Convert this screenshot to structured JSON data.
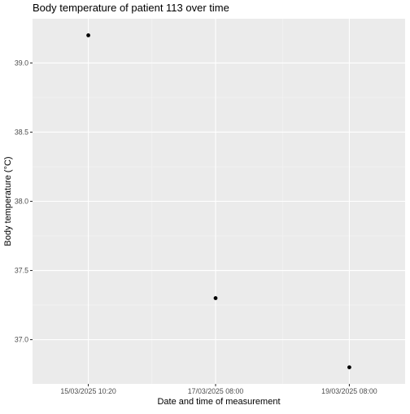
{
  "chart_data": {
    "type": "scatter",
    "title": "Body temperature of patient 113 over time",
    "xlabel": "Date and time of measurement",
    "ylabel": "Body temperature (°C)",
    "x_type": "datetime",
    "x_tick_labels": [
      "15/03/2025 10:20",
      "17/03/2025 08:00",
      "19/03/2025 08:00"
    ],
    "x_tick_values": [
      "2025-03-15T10:20",
      "2025-03-17T08:00",
      "2025-03-19T08:00"
    ],
    "xlim": [
      "2025-03-14T14:19",
      "2025-03-20T04:01"
    ],
    "y_ticks": [
      37.0,
      37.5,
      38.0,
      38.5,
      39.0
    ],
    "y_tick_labels": [
      "37.0",
      "37.5",
      "38.0",
      "38.5",
      "39.0"
    ],
    "ylim": [
      36.68,
      39.32
    ],
    "series": [
      {
        "points": [
          {
            "x": "2025-03-15T10:20",
            "y": 39.2
          },
          {
            "x": "2025-03-17T08:00",
            "y": 37.3
          },
          {
            "x": "2025-03-19T08:00",
            "y": 36.8
          }
        ]
      }
    ],
    "grid": true,
    "background": "#ebebeb",
    "grid_major_color": "#ffffff",
    "grid_minor_color": "#f5f5f5",
    "point_color": "#000000"
  }
}
